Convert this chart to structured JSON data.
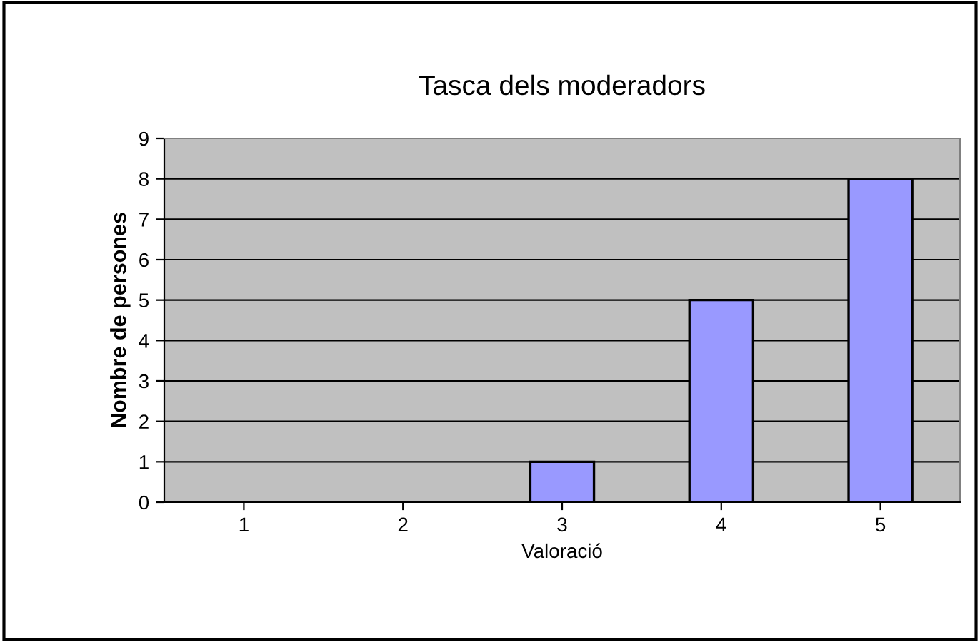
{
  "chart_data": {
    "type": "bar",
    "title": "Tasca dels moderadors",
    "xlabel": "Valoració",
    "ylabel": "Nombre de persones",
    "categories": [
      "1",
      "2",
      "3",
      "4",
      "5"
    ],
    "series": [
      {
        "color": "#9999ff",
        "values": [
          0,
          0,
          1,
          5,
          8
        ]
      }
    ],
    "ylim": [
      0,
      9
    ],
    "yticks": [
      0,
      1,
      2,
      3,
      4,
      5,
      6,
      7,
      8,
      9
    ],
    "grid": "y"
  }
}
